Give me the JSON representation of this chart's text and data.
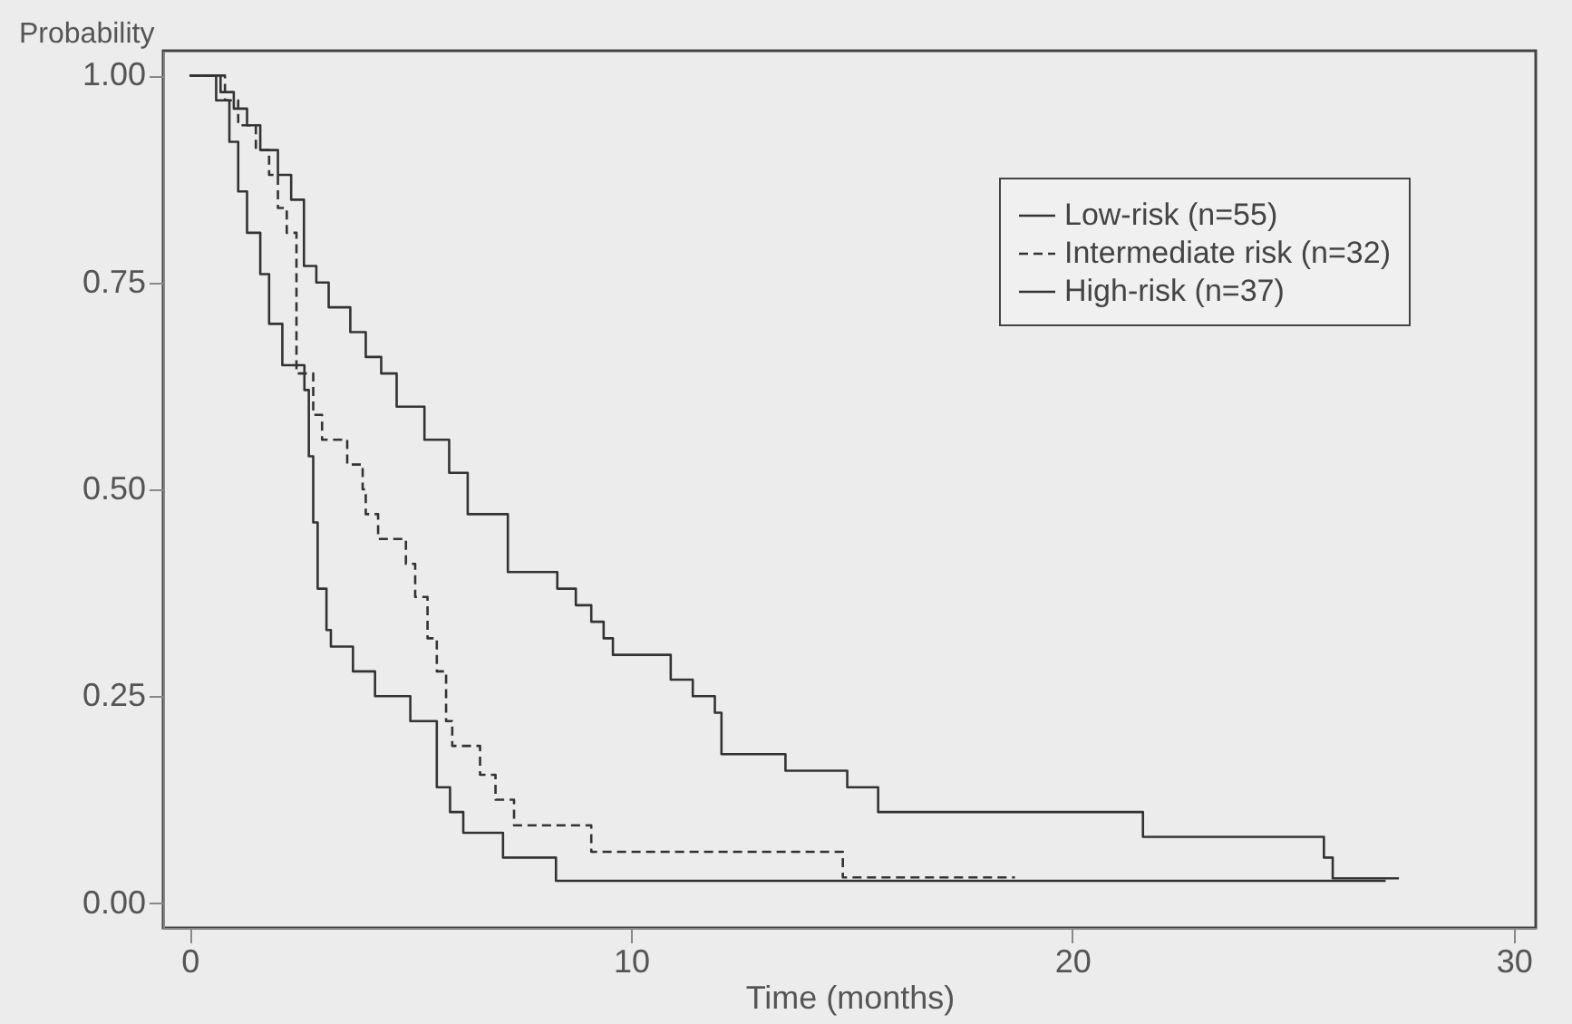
{
  "chart_data": {
    "type": "step",
    "xlabel": "Time (months)",
    "ylabel": "Probability",
    "xlim": [
      -0.6,
      30.5
    ],
    "xticks": [
      0,
      10,
      20,
      30
    ],
    "ylim": [
      -0.03,
      1.03
    ],
    "yticks": [
      {
        "value": 0,
        "label": "0.00"
      },
      0.25,
      {
        "value": 0.5,
        "label": "0.50"
      },
      0.75,
      {
        "value": 1,
        "label": "1.00"
      }
    ],
    "grid": false,
    "legend": "top right",
    "marker": "none",
    "series": [
      {
        "name": "Low-risk (n=55)",
        "color": "#333333",
        "line_style": "solid",
        "x": [
          0,
          0.7,
          1.0,
          1.3,
          1.6,
          2.0,
          2.3,
          2.59,
          2.87,
          3.15,
          3.64,
          3.99,
          4.34,
          4.69,
          5.32,
          5.88,
          6.3,
          7.21,
          8.33,
          8.75,
          9.1,
          9.38,
          9.59,
          10.9,
          11.4,
          11.9,
          12.05,
          13.5,
          14.9,
          15.6,
          21.6,
          25.7,
          25.9,
          27.4
        ],
        "values": [
          1.0,
          0.98,
          0.96,
          0.94,
          0.91,
          0.88,
          0.85,
          0.77,
          0.75,
          0.72,
          0.69,
          0.66,
          0.64,
          0.6,
          0.56,
          0.52,
          0.47,
          0.4,
          0.38,
          0.36,
          0.34,
          0.32,
          0.3,
          0.27,
          0.25,
          0.23,
          0.18,
          0.16,
          0.14,
          0.11,
          0.08,
          0.055,
          0.03,
          0.03
        ]
      },
      {
        "name": "Intermediate risk (n=32)",
        "color": "#333333",
        "line_style": "dashed",
        "x": [
          0,
          0.8,
          1.1,
          1.5,
          1.8,
          2.0,
          2.2,
          2.42,
          2.8,
          3.0,
          3.57,
          3.92,
          3.99,
          4.27,
          4.9,
          5.11,
          5.39,
          5.6,
          5.81,
          5.95,
          6.58,
          6.93,
          7.35,
          9.1,
          9.5,
          14.8,
          18.7
        ],
        "values": [
          1.0,
          0.97,
          0.94,
          0.91,
          0.88,
          0.84,
          0.81,
          0.64,
          0.59,
          0.56,
          0.53,
          0.5,
          0.47,
          0.44,
          0.41,
          0.37,
          0.32,
          0.28,
          0.22,
          0.19,
          0.155,
          0.125,
          0.094,
          0.062,
          0.062,
          0.031,
          0.031
        ]
      },
      {
        "name": "High-risk (n=37)",
        "color": "#333333",
        "line_style": "solid",
        "x": [
          0,
          0.6,
          0.9,
          1.1,
          1.3,
          1.6,
          1.8,
          2.1,
          2.6,
          2.7,
          2.8,
          2.9,
          3.1,
          3.2,
          3.7,
          4.2,
          5.0,
          5.6,
          5.9,
          6.2,
          7.1,
          8.3,
          27.1
        ],
        "values": [
          1.0,
          0.97,
          0.92,
          0.86,
          0.81,
          0.76,
          0.7,
          0.65,
          0.62,
          0.54,
          0.46,
          0.38,
          0.33,
          0.31,
          0.28,
          0.25,
          0.22,
          0.14,
          0.11,
          0.085,
          0.055,
          0.027,
          0.027
        ]
      }
    ]
  }
}
